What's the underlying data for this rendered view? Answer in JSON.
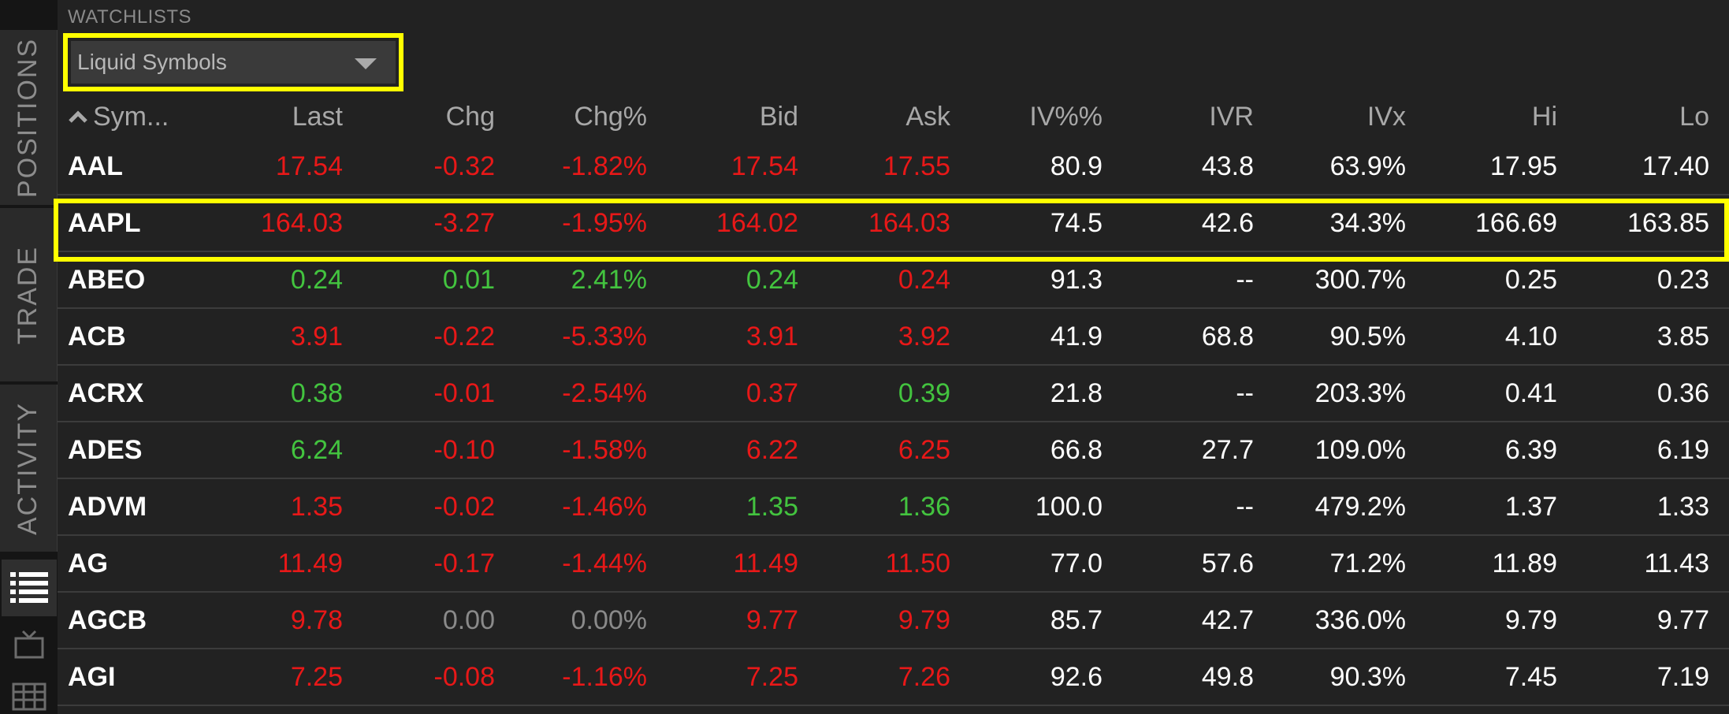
{
  "sidebar": {
    "tabs": [
      {
        "label": "POSITIONS"
      },
      {
        "label": "TRADE"
      },
      {
        "label": "ACTIVITY"
      }
    ],
    "icons": [
      "list-icon",
      "tv-icon",
      "grid-icon"
    ]
  },
  "watchlists": {
    "header": "WATCHLISTS",
    "selected": "Liquid Symbols"
  },
  "table": {
    "columns": [
      "Sym...",
      "Last",
      "Chg",
      "Chg%",
      "Bid",
      "Ask",
      "IV%%",
      "IVR",
      "IVx",
      "Hi",
      "Lo"
    ],
    "rows": [
      {
        "sym": "AAL",
        "last": "17.54",
        "chg": "-0.32",
        "chgp": "-1.82%",
        "bid": "17.54",
        "ask": "17.55",
        "iv": "80.9",
        "ivr": "43.8",
        "ivx": "63.9%",
        "hi": "17.95",
        "lo": "17.40",
        "colors": {
          "last": "red",
          "chg": "red",
          "chgp": "red",
          "bid": "red",
          "ask": "red"
        }
      },
      {
        "sym": "AAPL",
        "last": "164.03",
        "chg": "-3.27",
        "chgp": "-1.95%",
        "bid": "164.02",
        "ask": "164.03",
        "iv": "74.5",
        "ivr": "42.6",
        "ivx": "34.3%",
        "hi": "166.69",
        "lo": "163.85",
        "colors": {
          "last": "red",
          "chg": "red",
          "chgp": "red",
          "bid": "red",
          "ask": "red"
        }
      },
      {
        "sym": "ABEO",
        "last": "0.24",
        "chg": "0.01",
        "chgp": "2.41%",
        "bid": "0.24",
        "ask": "0.24",
        "iv": "91.3",
        "ivr": "--",
        "ivx": "300.7%",
        "hi": "0.25",
        "lo": "0.23",
        "colors": {
          "last": "green",
          "chg": "green",
          "chgp": "green",
          "bid": "green",
          "ask": "red"
        }
      },
      {
        "sym": "ACB",
        "last": "3.91",
        "chg": "-0.22",
        "chgp": "-5.33%",
        "bid": "3.91",
        "ask": "3.92",
        "iv": "41.9",
        "ivr": "68.8",
        "ivx": "90.5%",
        "hi": "4.10",
        "lo": "3.85",
        "colors": {
          "last": "red",
          "chg": "red",
          "chgp": "red",
          "bid": "red",
          "ask": "red"
        }
      },
      {
        "sym": "ACRX",
        "last": "0.38",
        "chg": "-0.01",
        "chgp": "-2.54%",
        "bid": "0.37",
        "ask": "0.39",
        "iv": "21.8",
        "ivr": "--",
        "ivx": "203.3%",
        "hi": "0.41",
        "lo": "0.36",
        "colors": {
          "last": "green",
          "chg": "red",
          "chgp": "red",
          "bid": "red",
          "ask": "green"
        }
      },
      {
        "sym": "ADES",
        "last": "6.24",
        "chg": "-0.10",
        "chgp": "-1.58%",
        "bid": "6.22",
        "ask": "6.25",
        "iv": "66.8",
        "ivr": "27.7",
        "ivx": "109.0%",
        "hi": "6.39",
        "lo": "6.19",
        "colors": {
          "last": "green",
          "chg": "red",
          "chgp": "red",
          "bid": "red",
          "ask": "red"
        }
      },
      {
        "sym": "ADVM",
        "last": "1.35",
        "chg": "-0.02",
        "chgp": "-1.46%",
        "bid": "1.35",
        "ask": "1.36",
        "iv": "100.0",
        "ivr": "--",
        "ivx": "479.2%",
        "hi": "1.37",
        "lo": "1.33",
        "colors": {
          "last": "red",
          "chg": "red",
          "chgp": "red",
          "bid": "green",
          "ask": "green"
        }
      },
      {
        "sym": "AG",
        "last": "11.49",
        "chg": "-0.17",
        "chgp": "-1.44%",
        "bid": "11.49",
        "ask": "11.50",
        "iv": "77.0",
        "ivr": "57.6",
        "ivx": "71.2%",
        "hi": "11.89",
        "lo": "11.43",
        "colors": {
          "last": "red",
          "chg": "red",
          "chgp": "red",
          "bid": "red",
          "ask": "red"
        }
      },
      {
        "sym": "AGCB",
        "last": "9.78",
        "chg": "0.00",
        "chgp": "0.00%",
        "bid": "9.77",
        "ask": "9.79",
        "iv": "85.7",
        "ivr": "42.7",
        "ivx": "336.0%",
        "hi": "9.79",
        "lo": "9.77",
        "colors": {
          "last": "red",
          "chg": "grey",
          "chgp": "grey",
          "bid": "red",
          "ask": "red"
        }
      },
      {
        "sym": "AGI",
        "last": "7.25",
        "chg": "-0.08",
        "chgp": "-1.16%",
        "bid": "7.25",
        "ask": "7.26",
        "iv": "92.6",
        "ivr": "49.8",
        "ivx": "90.3%",
        "hi": "7.45",
        "lo": "7.19",
        "colors": {
          "last": "red",
          "chg": "red",
          "chgp": "red",
          "bid": "red",
          "ask": "red"
        }
      }
    ]
  },
  "colors": {
    "red": "#e81818",
    "green": "#43c43f",
    "grey": "#8a8a8a",
    "highlight": "#ffff00"
  }
}
